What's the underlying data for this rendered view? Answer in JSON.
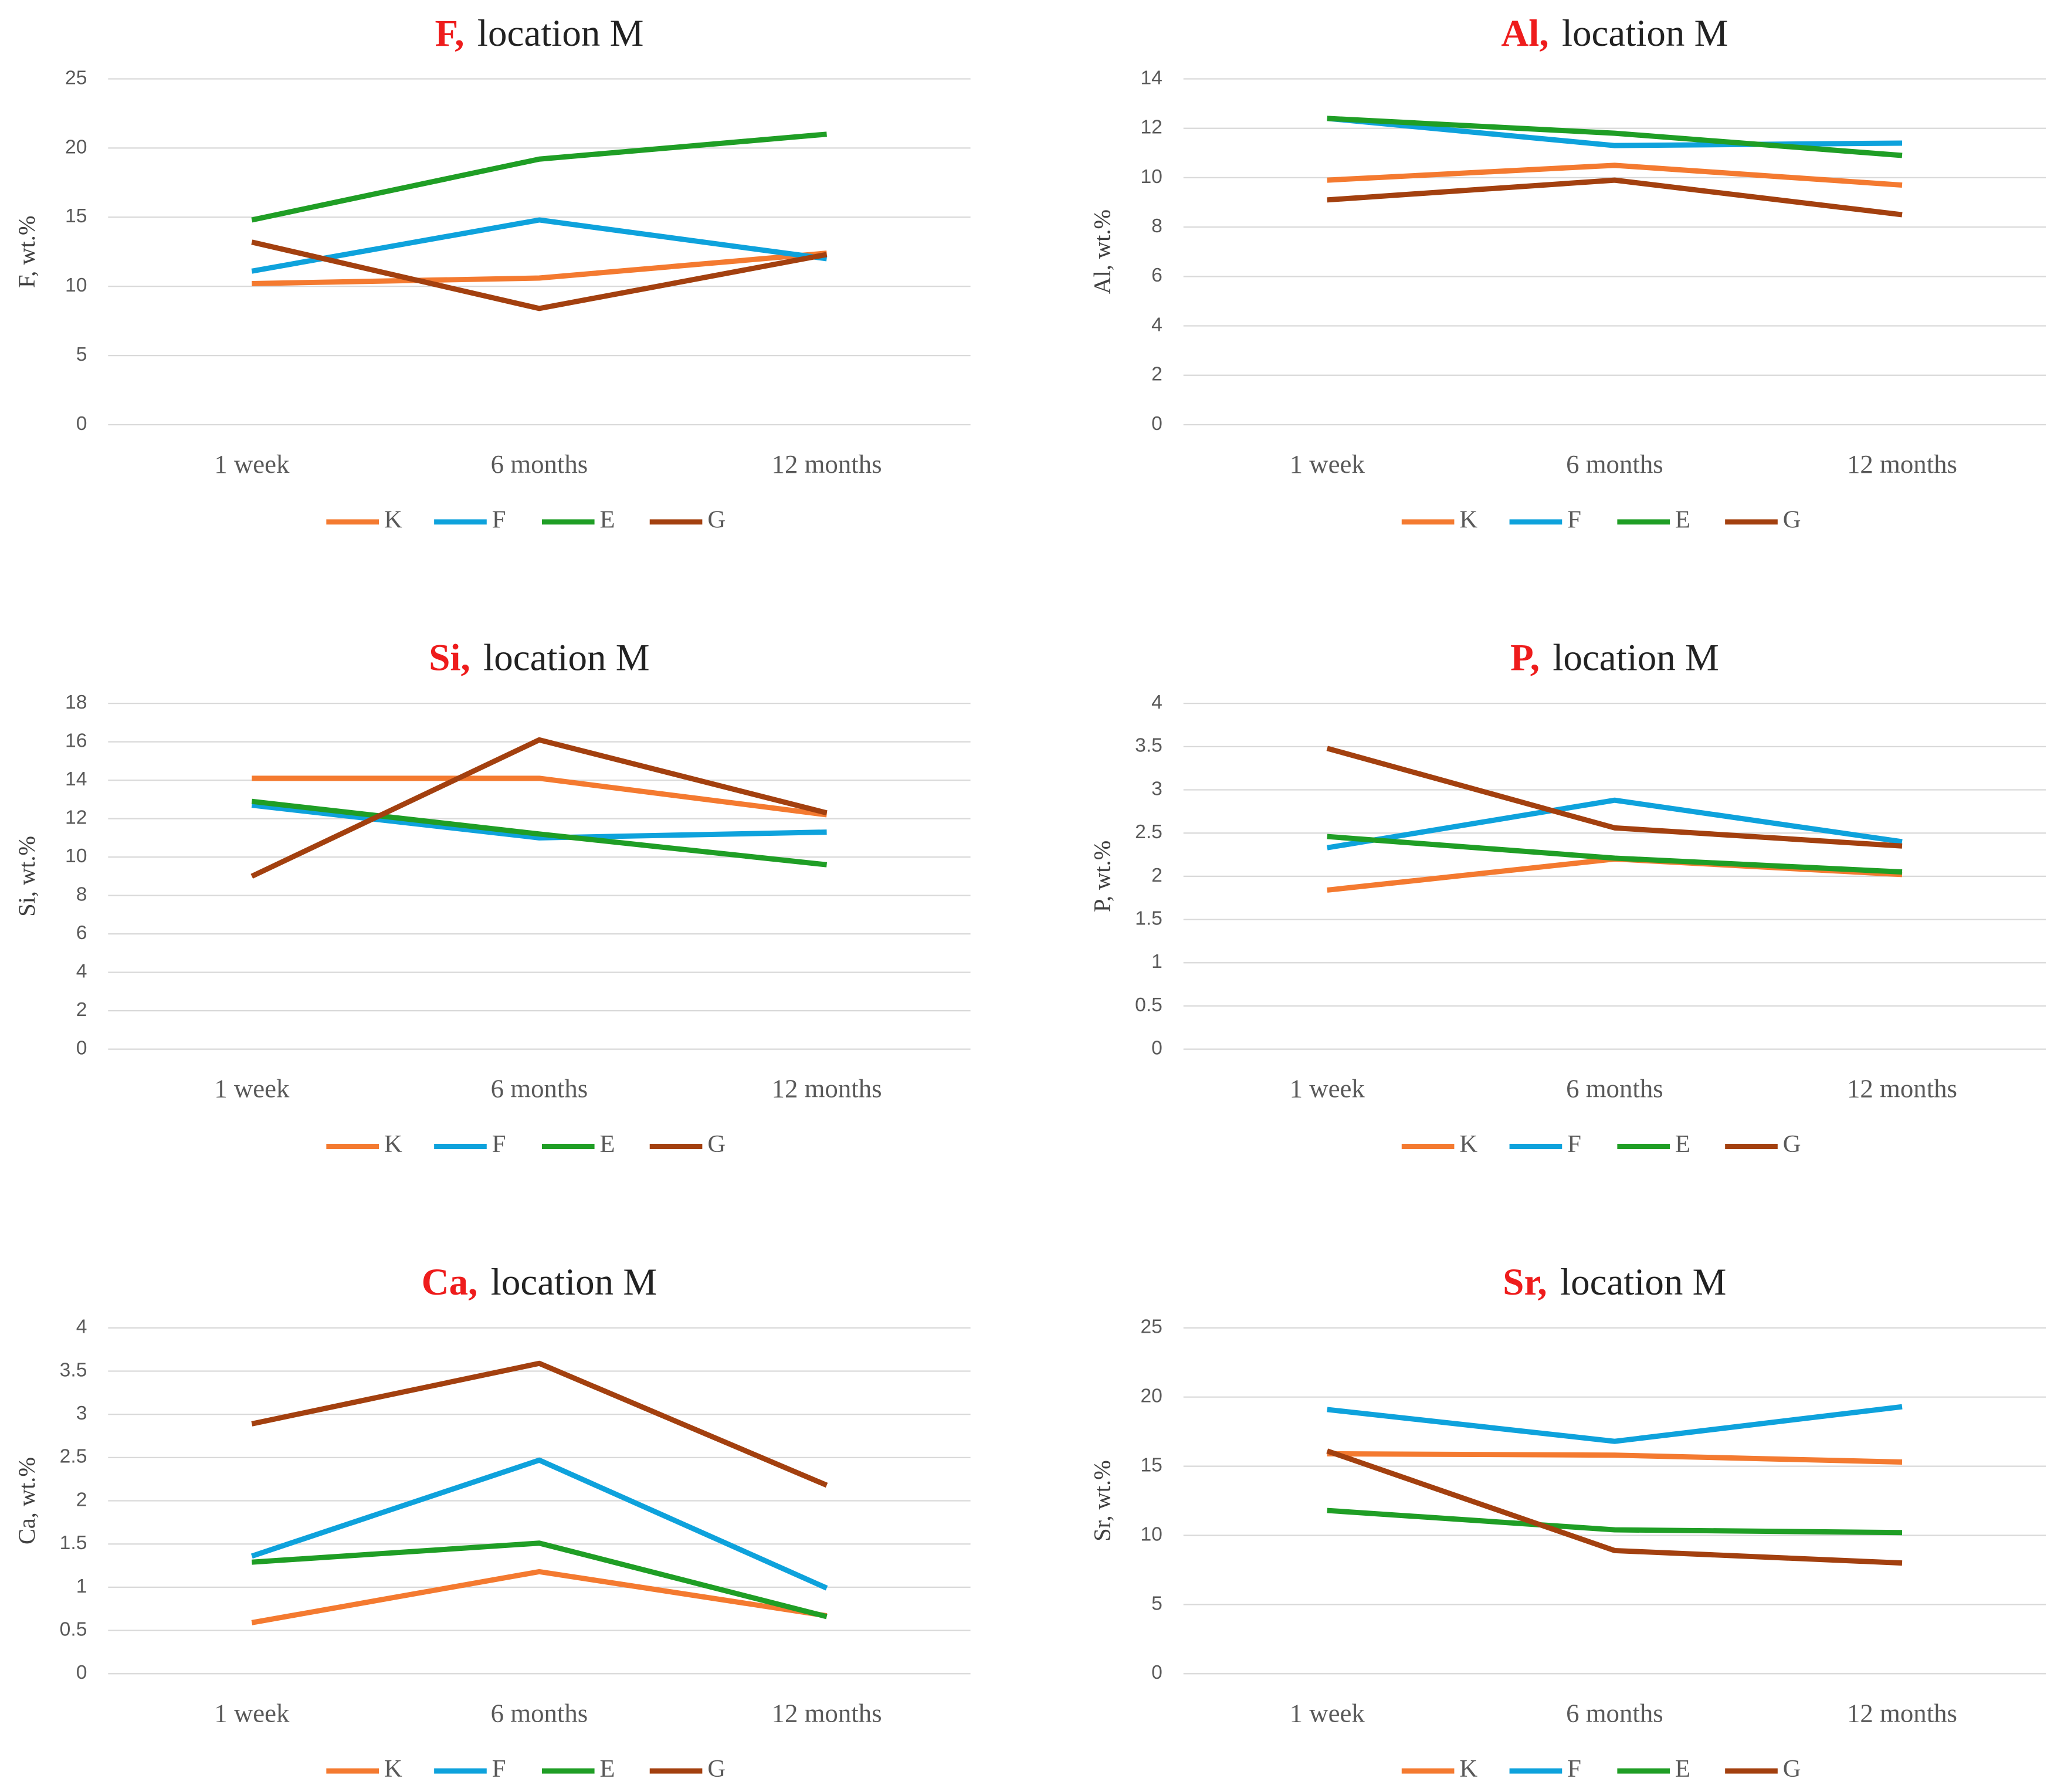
{
  "chart_data": [
    {
      "type": "line",
      "title_element": "F,",
      "title": "location M",
      "y_label": "F, wt.%",
      "categories": [
        "1 week",
        "6 months",
        "12 months"
      ],
      "ylim": [
        0,
        25
      ],
      "yticks": [
        0,
        5,
        10,
        15,
        20,
        25
      ],
      "grid": true,
      "series": [
        {
          "name": "K",
          "color": "#f47a30",
          "values": [
            10.2,
            10.6,
            12.4
          ]
        },
        {
          "name": "F",
          "color": "#0ea2dc",
          "values": [
            11.1,
            14.8,
            12.0
          ]
        },
        {
          "name": "E",
          "color": "#1f9e25",
          "values": [
            14.8,
            19.2,
            21.0
          ]
        },
        {
          "name": "G",
          "color": "#a3400f",
          "values": [
            13.2,
            8.4,
            12.3
          ]
        }
      ]
    },
    {
      "type": "line",
      "title_element": "Al,",
      "title": "location M",
      "y_label": "Al, wt.%",
      "categories": [
        "1 week",
        "6 months",
        "12 months"
      ],
      "ylim": [
        0,
        14
      ],
      "yticks": [
        0,
        2,
        4,
        6,
        8,
        10,
        12,
        14
      ],
      "grid": true,
      "series": [
        {
          "name": "K",
          "color": "#f47a30",
          "values": [
            9.9,
            10.5,
            9.7
          ]
        },
        {
          "name": "F",
          "color": "#0ea2dc",
          "values": [
            12.4,
            11.3,
            11.4
          ]
        },
        {
          "name": "E",
          "color": "#1f9e25",
          "values": [
            12.4,
            11.8,
            10.9
          ]
        },
        {
          "name": "G",
          "color": "#a3400f",
          "values": [
            9.1,
            9.9,
            8.5
          ]
        }
      ]
    },
    {
      "type": "line",
      "title_element": "Si,",
      "title": "location M",
      "y_label": "Si, wt.%",
      "categories": [
        "1 week",
        "6 months",
        "12 months"
      ],
      "ylim": [
        0,
        18
      ],
      "yticks": [
        0,
        2,
        4,
        6,
        8,
        10,
        12,
        14,
        16,
        18
      ],
      "grid": true,
      "series": [
        {
          "name": "K",
          "color": "#f47a30",
          "values": [
            14.1,
            14.1,
            12.2
          ]
        },
        {
          "name": "F",
          "color": "#0ea2dc",
          "values": [
            12.7,
            11.0,
            11.3
          ]
        },
        {
          "name": "E",
          "color": "#1f9e25",
          "values": [
            12.9,
            11.2,
            9.6
          ]
        },
        {
          "name": "G",
          "color": "#a3400f",
          "values": [
            9.0,
            16.1,
            12.3
          ]
        }
      ]
    },
    {
      "type": "line",
      "title_element": "P,",
      "title": "location M",
      "y_label": "P, wt.%",
      "categories": [
        "1 week",
        "6 months",
        "12 months"
      ],
      "ylim": [
        0,
        4
      ],
      "yticks": [
        0,
        0.5,
        1,
        1.5,
        2,
        2.5,
        3,
        3.5,
        4
      ],
      "grid": true,
      "series": [
        {
          "name": "K",
          "color": "#f47a30",
          "values": [
            1.84,
            2.2,
            2.02
          ]
        },
        {
          "name": "F",
          "color": "#0ea2dc",
          "values": [
            2.33,
            2.88,
            2.4
          ]
        },
        {
          "name": "E",
          "color": "#1f9e25",
          "values": [
            2.46,
            2.21,
            2.05
          ]
        },
        {
          "name": "G",
          "color": "#a3400f",
          "values": [
            3.48,
            2.56,
            2.35
          ]
        }
      ]
    },
    {
      "type": "line",
      "title_element": "Ca,",
      "title": "location M",
      "y_label": "Ca, wt.%",
      "categories": [
        "1 week",
        "6 months",
        "12 months"
      ],
      "ylim": [
        0,
        4
      ],
      "yticks": [
        0,
        0.5,
        1,
        1.5,
        2,
        2.5,
        3,
        3.5,
        4
      ],
      "grid": true,
      "series": [
        {
          "name": "K",
          "color": "#f47a30",
          "values": [
            0.59,
            1.18,
            0.67
          ]
        },
        {
          "name": "F",
          "color": "#0ea2dc",
          "values": [
            1.36,
            2.47,
            0.99
          ]
        },
        {
          "name": "E",
          "color": "#1f9e25",
          "values": [
            1.29,
            1.51,
            0.66
          ]
        },
        {
          "name": "G",
          "color": "#a3400f",
          "values": [
            2.89,
            3.59,
            2.18
          ]
        }
      ]
    },
    {
      "type": "line",
      "title_element": "Sr,",
      "title": "location M",
      "y_label": "Sr, wt.%",
      "categories": [
        "1 week",
        "6 months",
        "12 months"
      ],
      "ylim": [
        0,
        25
      ],
      "yticks": [
        0,
        5,
        10,
        15,
        20,
        25
      ],
      "grid": true,
      "series": [
        {
          "name": "K",
          "color": "#f47a30",
          "values": [
            15.9,
            15.8,
            15.3
          ]
        },
        {
          "name": "F",
          "color": "#0ea2dc",
          "values": [
            19.1,
            16.8,
            19.3
          ]
        },
        {
          "name": "E",
          "color": "#1f9e25",
          "values": [
            11.8,
            10.4,
            10.2
          ]
        },
        {
          "name": "G",
          "color": "#a3400f",
          "values": [
            16.1,
            8.9,
            8.0
          ]
        }
      ]
    }
  ]
}
